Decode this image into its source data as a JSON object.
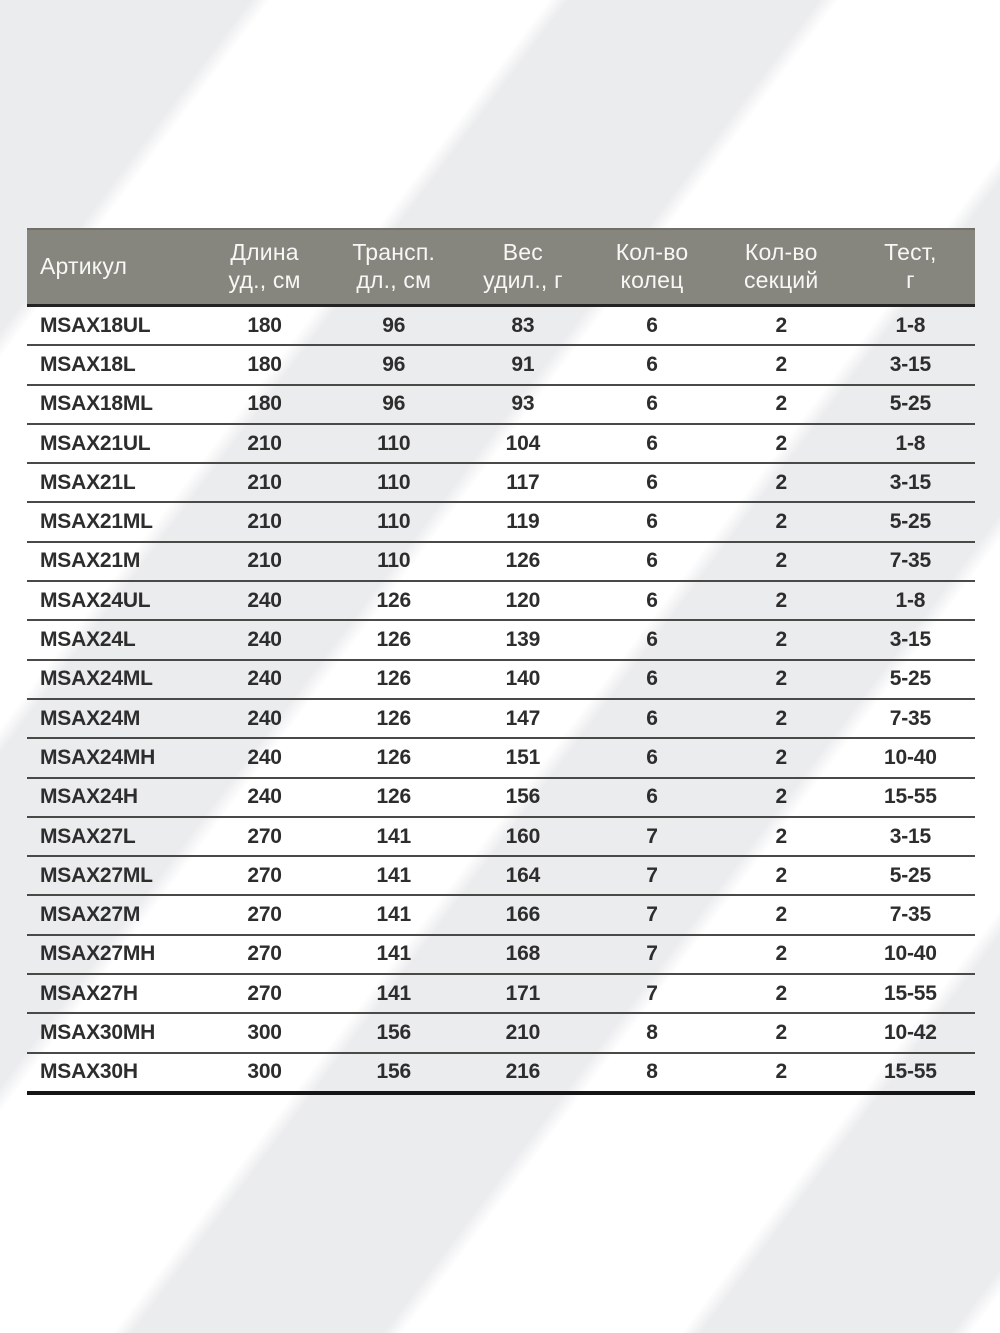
{
  "page": {
    "stripe_color": "#ebecee",
    "background_color": "#ffffff"
  },
  "table": {
    "header_bg": "#87867e",
    "header_text_color": "#f7f7f5",
    "body_text_color": "#2d2d2d",
    "headers": [
      "Артикул",
      "Длина\nуд., см",
      "Трансп.\nдл., см",
      "Вес\nудил.,  г",
      "Кол-во\nколец",
      "Кол-во\nсекций",
      "Тест,\nг"
    ],
    "rows": [
      [
        "MSAX18UL",
        "180",
        "96",
        "83",
        "6",
        "2",
        "1-8"
      ],
      [
        "MSAX18L",
        "180",
        "96",
        "91",
        "6",
        "2",
        "3-15"
      ],
      [
        "MSAX18ML",
        "180",
        "96",
        "93",
        "6",
        "2",
        "5-25"
      ],
      [
        "MSAX21UL",
        "210",
        "110",
        "104",
        "6",
        "2",
        "1-8"
      ],
      [
        "MSAX21L",
        "210",
        "110",
        "117",
        "6",
        "2",
        "3-15"
      ],
      [
        "MSAX21ML",
        "210",
        "110",
        "119",
        "6",
        "2",
        "5-25"
      ],
      [
        "MSAX21M",
        "210",
        "110",
        "126",
        "6",
        "2",
        "7-35"
      ],
      [
        "MSAX24UL",
        "240",
        "126",
        "120",
        "6",
        "2",
        "1-8"
      ],
      [
        "MSAX24L",
        "240",
        "126",
        "139",
        "6",
        "2",
        "3-15"
      ],
      [
        "MSAX24ML",
        "240",
        "126",
        "140",
        "6",
        "2",
        "5-25"
      ],
      [
        "MSAX24M",
        "240",
        "126",
        "147",
        "6",
        "2",
        "7-35"
      ],
      [
        "MSAX24MH",
        "240",
        "126",
        "151",
        "6",
        "2",
        "10-40"
      ],
      [
        "MSAX24H",
        "240",
        "126",
        "156",
        "6",
        "2",
        "15-55"
      ],
      [
        "MSAX27L",
        "270",
        "141",
        "160",
        "7",
        "2",
        "3-15"
      ],
      [
        "MSAX27ML",
        "270",
        "141",
        "164",
        "7",
        "2",
        "5-25"
      ],
      [
        "MSAX27M",
        "270",
        "141",
        "166",
        "7",
        "2",
        "7-35"
      ],
      [
        "MSAX27MH",
        "270",
        "141",
        "168",
        "7",
        "2",
        "10-40"
      ],
      [
        "MSAX27H",
        "270",
        "141",
        "171",
        "7",
        "2",
        "15-55"
      ],
      [
        "MSAX30MH",
        "300",
        "156",
        "210",
        "8",
        "2",
        "10-42"
      ],
      [
        "MSAX30H",
        "300",
        "156",
        "216",
        "8",
        "2",
        "15-55"
      ]
    ]
  }
}
